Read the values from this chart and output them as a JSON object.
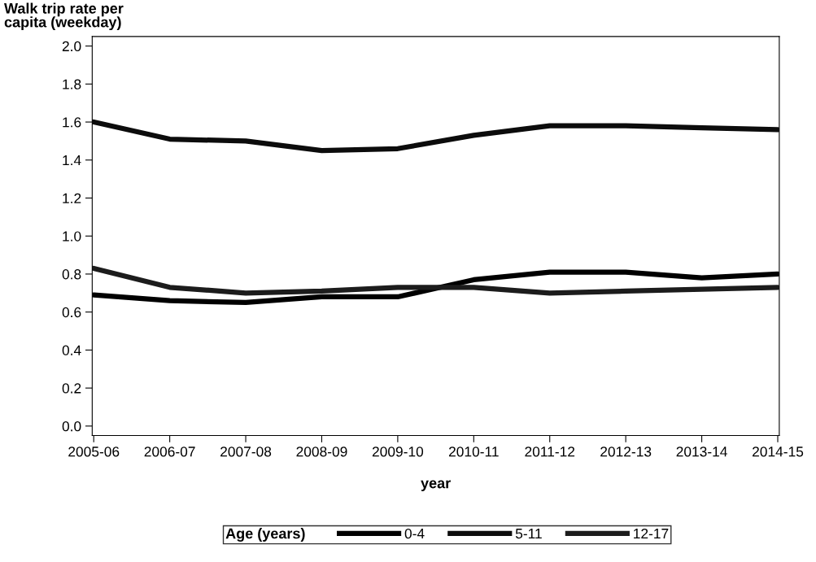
{
  "chart_data": {
    "type": "line",
    "ylabel": "Walk trip rate per\ncapita (weekday)",
    "xlabel": "year",
    "legend_title": "Age (years)",
    "legend": "bottom",
    "grid": false,
    "marker": "none",
    "line_style": "solid",
    "categories": [
      "2005-06",
      "2006-07",
      "2007-08",
      "2008-09",
      "2009-10",
      "2010-11",
      "2011-12",
      "2012-13",
      "2013-14",
      "2014-15"
    ],
    "ylim": [
      -0.05,
      2.05
    ],
    "yticks": [
      {
        "value": 0,
        "label": "0.0"
      },
      {
        "value": 0.2,
        "label": "0.2"
      },
      {
        "value": 0.4,
        "label": "0.4"
      },
      {
        "value": 0.6,
        "label": "0.6"
      },
      {
        "value": 0.8,
        "label": "0.8"
      },
      {
        "value": 1.0,
        "label": "1.0"
      },
      {
        "value": 1.2,
        "label": "1.2"
      },
      {
        "value": 1.4,
        "label": "1.4"
      },
      {
        "value": 1.6,
        "label": "1.6"
      },
      {
        "value": 1.8,
        "label": "1.8"
      },
      {
        "value": 2.0,
        "label": "2.0"
      }
    ],
    "series": [
      {
        "name": "0-4",
        "color": "#000000",
        "values": [
          0.69,
          0.66,
          0.65,
          0.68,
          0.68,
          0.77,
          0.81,
          0.81,
          0.78,
          0.8
        ]
      },
      {
        "name": "5-11",
        "color": "#0c0c0c",
        "values": [
          1.6,
          1.51,
          1.5,
          1.45,
          1.46,
          1.53,
          1.58,
          1.58,
          1.57,
          1.56
        ]
      },
      {
        "name": "12-17",
        "color": "#1c1c1c",
        "values": [
          0.83,
          0.73,
          0.7,
          0.71,
          0.73,
          0.73,
          0.7,
          0.71,
          0.72,
          0.73
        ]
      }
    ]
  }
}
